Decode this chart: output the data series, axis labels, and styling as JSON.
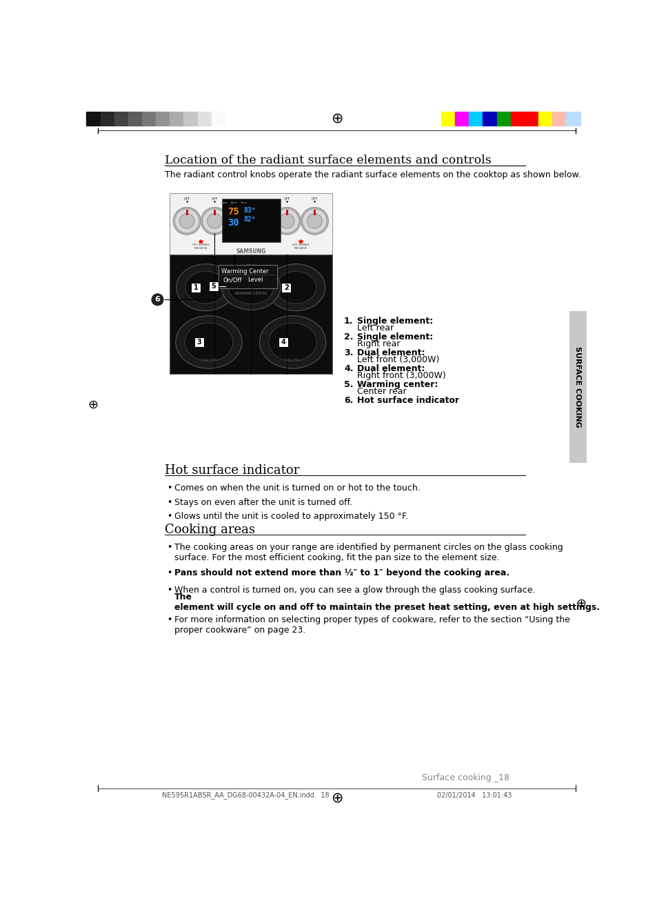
{
  "page_bg": "#ffffff",
  "top_color_bar_left": [
    "#111111",
    "#2a2a2a",
    "#444444",
    "#5e5e5e",
    "#787878",
    "#929292",
    "#acacac",
    "#c6c6c6",
    "#e0e0e0",
    "#fafafa"
  ],
  "top_color_bar_right": [
    "#ffff00",
    "#ff00ff",
    "#00ccff",
    "#0000bb",
    "#009900",
    "#ff0000",
    "#ff0000",
    "#ffff00",
    "#ffbbaa",
    "#bbddff"
  ],
  "section1_title": "Location of the radiant surface elements and controls",
  "section1_subtitle": "The radiant control knobs operate the radiant surface elements on the cooktop as shown below.",
  "legend_items": [
    {
      "num": "1.",
      "bold": "Single element:",
      "text": "Left rear"
    },
    {
      "num": "2.",
      "bold": "Single element:",
      "text": "Right rear"
    },
    {
      "num": "3.",
      "bold": "Dual element:",
      "text": "Left front (3,000W)"
    },
    {
      "num": "4.",
      "bold": "Dual element:",
      "text": "Right front (3,000W)"
    },
    {
      "num": "5.",
      "bold": "Warming center:",
      "text": "Center rear"
    },
    {
      "num": "6.",
      "bold": "Hot surface indicator",
      "text": ""
    }
  ],
  "section2_title": "Hot surface indicator",
  "section2_bullets": [
    "Comes on when the unit is turned on or hot to the touch.",
    "Stays on even after the unit is turned off.",
    "Glows until the unit is cooled to approximately 150 °F."
  ],
  "section3_title": "Cooking areas",
  "section3_bullet1": "The cooking areas on your range are identified by permanent circles on the glass cooking\nsurface. For the most efficient cooking, fit the pan size to the element size.",
  "section3_bullet2": "Pans should not extend more than ½″ to 1″ beyond the cooking area.",
  "section3_bullet3_normal": "When a control is turned on, you can see a glow through the glass cooking surface. ",
  "section3_bullet3_bold": "The\nelement will cycle on and off to maintain the preset heat setting, even at high settings.",
  "section3_bullet4": "For more information on selecting proper types of cookware, refer to the section “Using the\nproper cookware” on page 23.",
  "sidebar_text": "SURFACE COOKING",
  "footer_text": "Surface cooking _18",
  "footer_left": "NE595R1ABSR_AA_DG68-00432A-04_EN.indd   18",
  "footer_right": "02/01/2014   13:01:43"
}
